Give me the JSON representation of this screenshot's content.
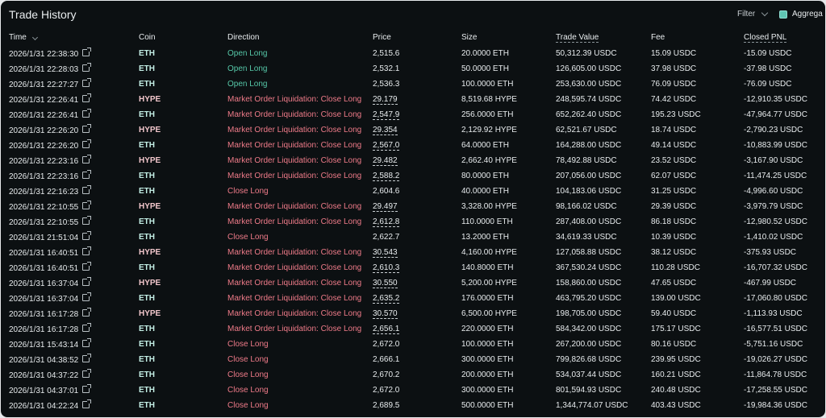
{
  "title": "Trade History",
  "filter_label": "Filter",
  "aggregate_label": "Aggrega",
  "headers": {
    "time": "Time",
    "coin": "Coin",
    "direction": "Direction",
    "price": "Price",
    "size": "Size",
    "trade_value": "Trade Value",
    "fee": "Fee",
    "closed_pnl": "Closed PNL"
  },
  "colors": {
    "open_long": "#56c7a8",
    "close_long": "#ef7b89",
    "coin_eth": "#c4efe6",
    "coin_hype": "#f2c7cc"
  },
  "rows": [
    {
      "time": "2026/1/31 22:38:30",
      "coin": "ETH",
      "direction": "Open Long",
      "price": "2,515.6",
      "size": "20.0000 ETH",
      "value": "50,312.39 USDC",
      "fee": "15.09 USDC",
      "pnl": "-15.09 USDC",
      "dir_type": "open",
      "liq": false
    },
    {
      "time": "2026/1/31 22:28:03",
      "coin": "ETH",
      "direction": "Open Long",
      "price": "2,532.1",
      "size": "50.0000 ETH",
      "value": "126,605.00 USDC",
      "fee": "37.98 USDC",
      "pnl": "-37.98 USDC",
      "dir_type": "open",
      "liq": false
    },
    {
      "time": "2026/1/31 22:27:27",
      "coin": "ETH",
      "direction": "Open Long",
      "price": "2,536.3",
      "size": "100.0000 ETH",
      "value": "253,630.00 USDC",
      "fee": "76.09 USDC",
      "pnl": "-76.09 USDC",
      "dir_type": "open",
      "liq": false
    },
    {
      "time": "2026/1/31 22:26:41",
      "coin": "HYPE",
      "direction": "Market Order Liquidation: Close Long",
      "price": "29.179",
      "size": "8,519.68 HYPE",
      "value": "248,595.74 USDC",
      "fee": "74.42 USDC",
      "pnl": "-12,910.35 USDC",
      "dir_type": "close",
      "liq": true
    },
    {
      "time": "2026/1/31 22:26:41",
      "coin": "ETH",
      "direction": "Market Order Liquidation: Close Long",
      "price": "2,547.9",
      "size": "256.0000 ETH",
      "value": "652,262.40 USDC",
      "fee": "195.23 USDC",
      "pnl": "-47,964.77 USDC",
      "dir_type": "close",
      "liq": true
    },
    {
      "time": "2026/1/31 22:26:20",
      "coin": "HYPE",
      "direction": "Market Order Liquidation: Close Long",
      "price": "29.354",
      "size": "2,129.92 HYPE",
      "value": "62,521.67 USDC",
      "fee": "18.74 USDC",
      "pnl": "-2,790.23 USDC",
      "dir_type": "close",
      "liq": true
    },
    {
      "time": "2026/1/31 22:26:20",
      "coin": "ETH",
      "direction": "Market Order Liquidation: Close Long",
      "price": "2,567.0",
      "size": "64.0000 ETH",
      "value": "164,288.00 USDC",
      "fee": "49.14 USDC",
      "pnl": "-10,883.99 USDC",
      "dir_type": "close",
      "liq": true
    },
    {
      "time": "2026/1/31 22:23:16",
      "coin": "HYPE",
      "direction": "Market Order Liquidation: Close Long",
      "price": "29.482",
      "size": "2,662.40 HYPE",
      "value": "78,492.88 USDC",
      "fee": "23.52 USDC",
      "pnl": "-3,167.90 USDC",
      "dir_type": "close",
      "liq": true
    },
    {
      "time": "2026/1/31 22:23:16",
      "coin": "ETH",
      "direction": "Market Order Liquidation: Close Long",
      "price": "2,588.2",
      "size": "80.0000 ETH",
      "value": "207,056.00 USDC",
      "fee": "62.07 USDC",
      "pnl": "-11,474.25 USDC",
      "dir_type": "close",
      "liq": true
    },
    {
      "time": "2026/1/31 22:16:23",
      "coin": "ETH",
      "direction": "Close Long",
      "price": "2,604.6",
      "size": "40.0000 ETH",
      "value": "104,183.06 USDC",
      "fee": "31.25 USDC",
      "pnl": "-4,996.60 USDC",
      "dir_type": "close",
      "liq": false
    },
    {
      "time": "2026/1/31 22:10:55",
      "coin": "HYPE",
      "direction": "Market Order Liquidation: Close Long",
      "price": "29.497",
      "size": "3,328.00 HYPE",
      "value": "98,166.02 USDC",
      "fee": "29.39 USDC",
      "pnl": "-3,979.79 USDC",
      "dir_type": "close",
      "liq": true
    },
    {
      "time": "2026/1/31 22:10:55",
      "coin": "ETH",
      "direction": "Market Order Liquidation: Close Long",
      "price": "2,612.8",
      "size": "110.0000 ETH",
      "value": "287,408.00 USDC",
      "fee": "86.18 USDC",
      "pnl": "-12,980.52 USDC",
      "dir_type": "close",
      "liq": true
    },
    {
      "time": "2026/1/31 21:51:04",
      "coin": "ETH",
      "direction": "Close Long",
      "price": "2,622.7",
      "size": "13.2000 ETH",
      "value": "34,619.33 USDC",
      "fee": "10.39 USDC",
      "pnl": "-1,410.02 USDC",
      "dir_type": "close",
      "liq": false
    },
    {
      "time": "2026/1/31 16:40:51",
      "coin": "HYPE",
      "direction": "Market Order Liquidation: Close Long",
      "price": "30.543",
      "size": "4,160.00 HYPE",
      "value": "127,058.88 USDC",
      "fee": "38.12 USDC",
      "pnl": "-375.93 USDC",
      "dir_type": "close",
      "liq": true
    },
    {
      "time": "2026/1/31 16:40:51",
      "coin": "ETH",
      "direction": "Market Order Liquidation: Close Long",
      "price": "2,610.3",
      "size": "140.8000 ETH",
      "value": "367,530.24 USDC",
      "fee": "110.28 USDC",
      "pnl": "-16,707.32 USDC",
      "dir_type": "close",
      "liq": true
    },
    {
      "time": "2026/1/31 16:37:04",
      "coin": "HYPE",
      "direction": "Market Order Liquidation: Close Long",
      "price": "30.550",
      "size": "5,200.00 HYPE",
      "value": "158,860.00 USDC",
      "fee": "47.65 USDC",
      "pnl": "-467.99 USDC",
      "dir_type": "close",
      "liq": true
    },
    {
      "time": "2026/1/31 16:37:04",
      "coin": "ETH",
      "direction": "Market Order Liquidation: Close Long",
      "price": "2,635.2",
      "size": "176.0000 ETH",
      "value": "463,795.20 USDC",
      "fee": "139.00 USDC",
      "pnl": "-17,060.80 USDC",
      "dir_type": "close",
      "liq": true
    },
    {
      "time": "2026/1/31 16:17:28",
      "coin": "HYPE",
      "direction": "Market Order Liquidation: Close Long",
      "price": "30.570",
      "size": "6,500.00 HYPE",
      "value": "198,705.00 USDC",
      "fee": "59.40 USDC",
      "pnl": "-1,113.93 USDC",
      "dir_type": "close",
      "liq": true
    },
    {
      "time": "2026/1/31 16:17:28",
      "coin": "ETH",
      "direction": "Market Order Liquidation: Close Long",
      "price": "2,656.1",
      "size": "220.0000 ETH",
      "value": "584,342.00 USDC",
      "fee": "175.17 USDC",
      "pnl": "-16,577.51 USDC",
      "dir_type": "close",
      "liq": true
    },
    {
      "time": "2026/1/31 15:43:14",
      "coin": "ETH",
      "direction": "Close Long",
      "price": "2,672.0",
      "size": "100.0000 ETH",
      "value": "267,200.00 USDC",
      "fee": "80.16 USDC",
      "pnl": "-5,751.16 USDC",
      "dir_type": "close",
      "liq": false
    },
    {
      "time": "2026/1/31 04:38:52",
      "coin": "ETH",
      "direction": "Close Long",
      "price": "2,666.1",
      "size": "300.0000 ETH",
      "value": "799,826.68 USDC",
      "fee": "239.95 USDC",
      "pnl": "-19,026.27 USDC",
      "dir_type": "close",
      "liq": false
    },
    {
      "time": "2026/1/31 04:37:22",
      "coin": "ETH",
      "direction": "Close Long",
      "price": "2,670.2",
      "size": "200.0000 ETH",
      "value": "534,037.44 USDC",
      "fee": "160.21 USDC",
      "pnl": "-11,864.78 USDC",
      "dir_type": "close",
      "liq": false
    },
    {
      "time": "2026/1/31 04:37:01",
      "coin": "ETH",
      "direction": "Close Long",
      "price": "2,672.0",
      "size": "300.0000 ETH",
      "value": "801,594.93 USDC",
      "fee": "240.48 USDC",
      "pnl": "-17,258.55 USDC",
      "dir_type": "close",
      "liq": false
    },
    {
      "time": "2026/1/31 04:22:24",
      "coin": "ETH",
      "direction": "Close Long",
      "price": "2,689.5",
      "size": "500.0000 ETH",
      "value": "1,344,774.07 USDC",
      "fee": "403.43 USDC",
      "pnl": "-19,984.36 USDC",
      "dir_type": "close",
      "liq": false
    }
  ]
}
